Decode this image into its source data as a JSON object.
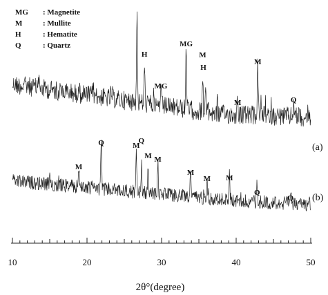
{
  "chart_data": {
    "type": "line",
    "title": "",
    "xlabel": "2θ°(degree)",
    "ylabel": "",
    "xlim": [
      10,
      50
    ],
    "x_ticks": [
      "10",
      "20",
      "30",
      "40",
      "50"
    ],
    "legend": [
      {
        "symbol": "MG",
        "phase": "Magnetite"
      },
      {
        "symbol": "M",
        "phase": "Mullite"
      },
      {
        "symbol": "H",
        "phase": "Hematite"
      },
      {
        "symbol": "Q",
        "phase": "Quartz"
      }
    ],
    "series": [
      {
        "name": "(a)",
        "peaks": [
          {
            "label": "H",
            "x": 27.7
          },
          {
            "label": "MG",
            "x": 29.9
          },
          {
            "label": "MG",
            "x": 33.3
          },
          {
            "label": "M",
            "x": 35.5
          },
          {
            "label": "H",
            "x": 35.6
          },
          {
            "label": "M",
            "x": 40.2
          },
          {
            "label": "M",
            "x": 42.9
          },
          {
            "label": "Q",
            "x": 47.7
          }
        ]
      },
      {
        "name": "(b)",
        "peaks": [
          {
            "label": "M",
            "x": 18.9
          },
          {
            "label": "Q",
            "x": 21.9
          },
          {
            "label": "M",
            "x": 26.6
          },
          {
            "label": "Q",
            "x": 27.3
          },
          {
            "label": "M",
            "x": 28.2
          },
          {
            "label": "M",
            "x": 29.5
          },
          {
            "label": "M",
            "x": 33.9
          },
          {
            "label": "M",
            "x": 36.1
          },
          {
            "label": "M",
            "x": 39.1
          },
          {
            "label": "Q",
            "x": 42.8
          },
          {
            "label": "Q",
            "x": 47.3
          }
        ]
      }
    ]
  }
}
